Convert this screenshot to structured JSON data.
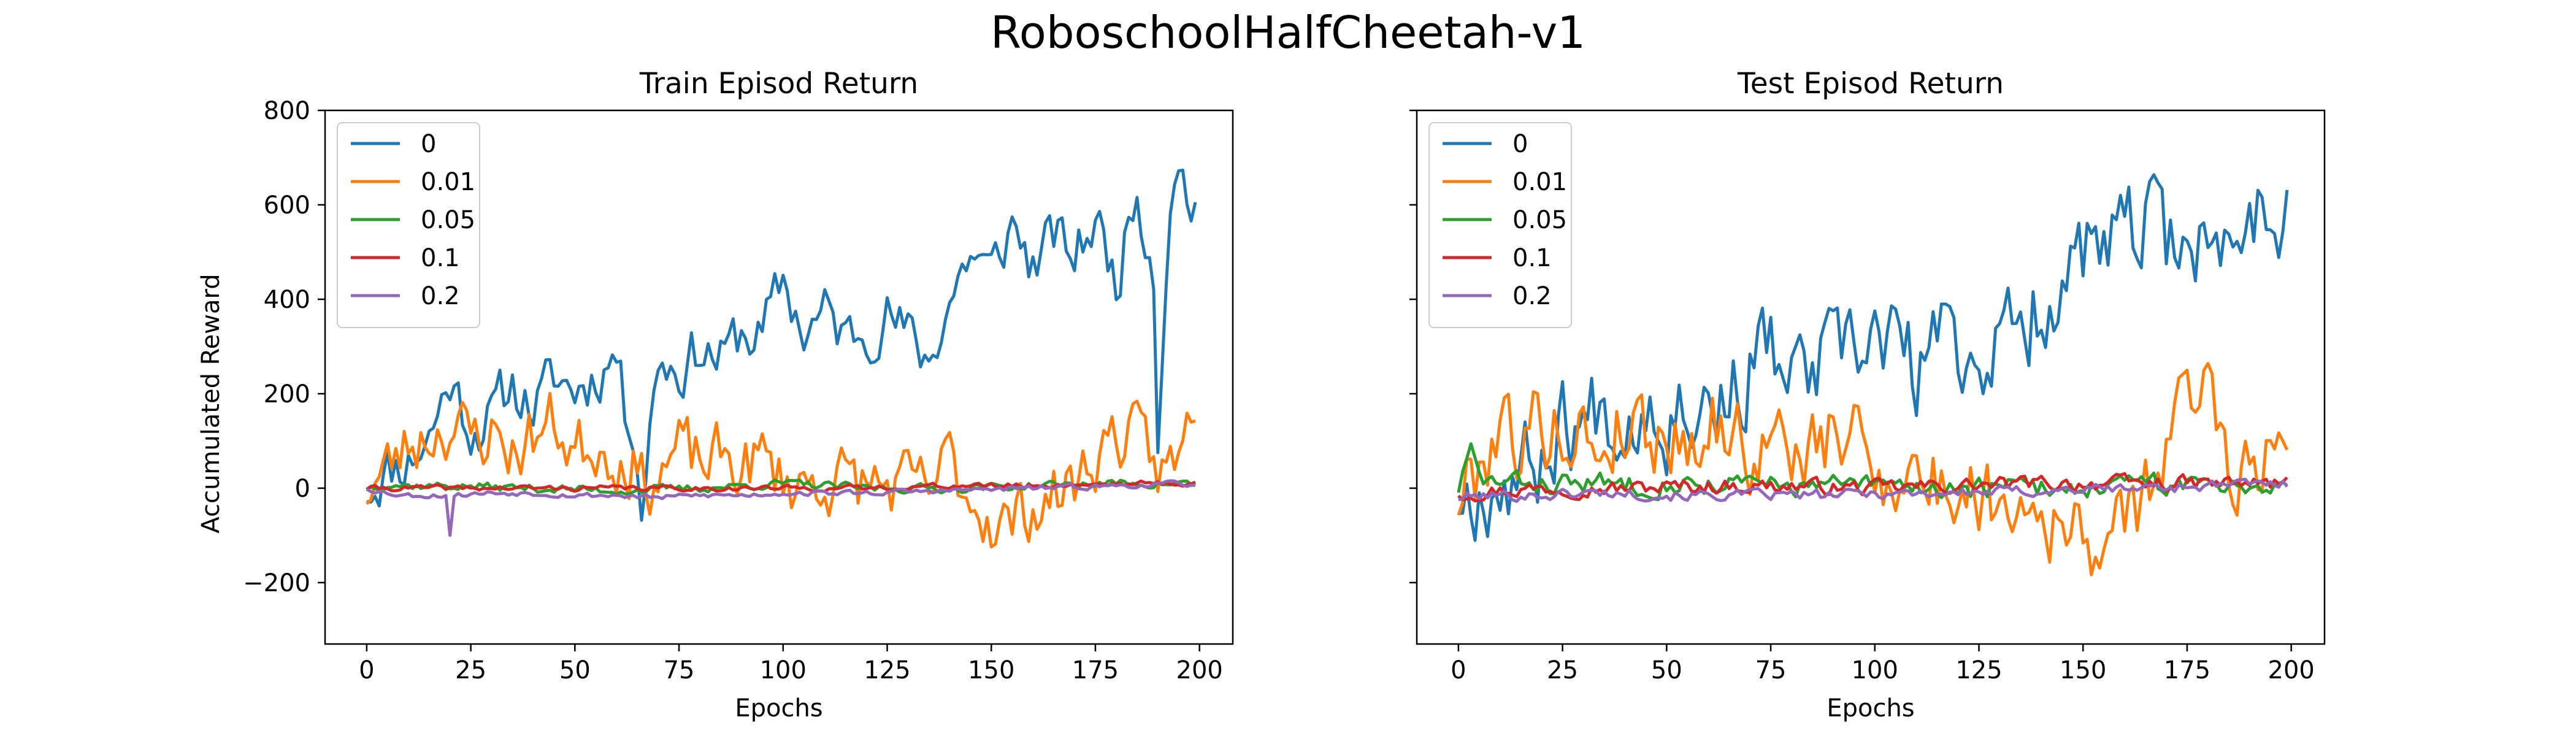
{
  "figure": {
    "suptitle": "RoboschoolHalfCheetah-v1"
  },
  "colors": {
    "0": "#1f77b4",
    "0.01": "#ff7f0e",
    "0.05": "#2ca02c",
    "0.1": "#d62728",
    "0.2": "#9467bd"
  },
  "chart_data": [
    {
      "type": "line",
      "title": "Train Episod Return",
      "xlabel": "Epochs",
      "ylabel": "Accumulated Reward",
      "xlim": [
        -10,
        208
      ],
      "ylim": [
        -330,
        800
      ],
      "xticks": [
        0,
        25,
        50,
        75,
        100,
        125,
        150,
        175,
        200
      ],
      "yticks": [
        -200,
        0,
        200,
        400,
        600,
        800
      ],
      "ytick_labels": [
        "−200",
        "0",
        "200",
        "400",
        "600",
        "800"
      ],
      "legend": "upper-left",
      "series": [
        {
          "name": "0",
          "color": "#1f77b4",
          "seed": 11,
          "points": [
            [
              0,
              0
            ],
            [
              5,
              40
            ],
            [
              10,
              60
            ],
            [
              15,
              110
            ],
            [
              20,
              230
            ],
            [
              25,
              130
            ],
            [
              30,
              150
            ],
            [
              35,
              220
            ],
            [
              40,
              170
            ],
            [
              45,
              230
            ],
            [
              50,
              210
            ],
            [
              55,
              240
            ],
            [
              60,
              290
            ],
            [
              62,
              160
            ],
            [
              64,
              150
            ],
            [
              66,
              -30
            ],
            [
              70,
              280
            ],
            [
              75,
              250
            ],
            [
              80,
              300
            ],
            [
              85,
              270
            ],
            [
              90,
              330
            ],
            [
              95,
              320
            ],
            [
              100,
              440
            ],
            [
              105,
              330
            ],
            [
              110,
              370
            ],
            [
              115,
              320
            ],
            [
              120,
              340
            ],
            [
              125,
              370
            ],
            [
              130,
              320
            ],
            [
              135,
              270
            ],
            [
              140,
              400
            ],
            [
              145,
              500
            ],
            [
              150,
              450
            ],
            [
              155,
              560
            ],
            [
              160,
              470
            ],
            [
              165,
              530
            ],
            [
              170,
              490
            ],
            [
              175,
              570
            ],
            [
              180,
              440
            ],
            [
              185,
              640
            ],
            [
              189,
              470
            ],
            [
              190,
              130
            ],
            [
              193,
              640
            ],
            [
              196,
              670
            ],
            [
              198,
              600
            ]
          ],
          "amp": 55
        },
        {
          "name": "0.01",
          "color": "#ff7f0e",
          "seed": 23,
          "points": [
            [
              0,
              0
            ],
            [
              5,
              40
            ],
            [
              10,
              90
            ],
            [
              15,
              120
            ],
            [
              20,
              140
            ],
            [
              25,
              100
            ],
            [
              30,
              120
            ],
            [
              35,
              80
            ],
            [
              40,
              110
            ],
            [
              45,
              140
            ],
            [
              50,
              80
            ],
            [
              55,
              100
            ],
            [
              60,
              70
            ],
            [
              64,
              60
            ],
            [
              66,
              10
            ],
            [
              70,
              30
            ],
            [
              75,
              80
            ],
            [
              80,
              50
            ],
            [
              85,
              60
            ],
            [
              90,
              50
            ],
            [
              95,
              60
            ],
            [
              100,
              20
            ],
            [
              105,
              10
            ],
            [
              110,
              20
            ],
            [
              120,
              10
            ],
            [
              130,
              0
            ],
            [
              135,
              -10
            ],
            [
              140,
              60
            ],
            [
              145,
              -20
            ],
            [
              150,
              -60
            ],
            [
              155,
              -80
            ],
            [
              160,
              -30
            ],
            [
              165,
              -20
            ],
            [
              170,
              10
            ],
            [
              175,
              70
            ],
            [
              180,
              120
            ],
            [
              185,
              90
            ],
            [
              190,
              40
            ],
            [
              195,
              50
            ],
            [
              199,
              200
            ]
          ],
          "amp": 65
        },
        {
          "name": "0.05",
          "color": "#2ca02c",
          "seed": 37,
          "points": [
            [
              0,
              0
            ],
            [
              5,
              10
            ],
            [
              10,
              5
            ],
            [
              20,
              5
            ],
            [
              40,
              0
            ],
            [
              60,
              -5
            ],
            [
              80,
              0
            ],
            [
              100,
              10
            ],
            [
              120,
              0
            ],
            [
              140,
              0
            ],
            [
              160,
              5
            ],
            [
              180,
              10
            ],
            [
              199,
              10
            ]
          ],
          "amp": 8
        },
        {
          "name": "0.1",
          "color": "#d62728",
          "seed": 41,
          "points": [
            [
              0,
              0
            ],
            [
              20,
              0
            ],
            [
              40,
              0
            ],
            [
              60,
              0
            ],
            [
              80,
              0
            ],
            [
              100,
              0
            ],
            [
              120,
              0
            ],
            [
              140,
              5
            ],
            [
              160,
              5
            ],
            [
              180,
              10
            ],
            [
              199,
              10
            ]
          ],
          "amp": 5
        },
        {
          "name": "0.2",
          "color": "#9467bd",
          "seed": 53,
          "points": [
            [
              0,
              0
            ],
            [
              5,
              -10
            ],
            [
              10,
              -15
            ],
            [
              20,
              -15
            ],
            [
              30,
              -10
            ],
            [
              40,
              -10
            ],
            [
              50,
              -15
            ],
            [
              60,
              -15
            ],
            [
              70,
              -20
            ],
            [
              80,
              -15
            ],
            [
              90,
              -15
            ],
            [
              100,
              -10
            ],
            [
              110,
              -10
            ],
            [
              120,
              -10
            ],
            [
              140,
              -5
            ],
            [
              160,
              0
            ],
            [
              180,
              5
            ],
            [
              199,
              10
            ]
          ],
          "amp": 5,
          "spikes": [
            [
              20,
              -100
            ]
          ]
        }
      ]
    },
    {
      "type": "line",
      "title": "Test Episod Return",
      "xlabel": "Epochs",
      "ylabel": "",
      "xlim": [
        -10,
        208
      ],
      "ylim": [
        -330,
        800
      ],
      "xticks": [
        0,
        25,
        50,
        75,
        100,
        125,
        150,
        175,
        200
      ],
      "yticks": [
        -200,
        0,
        200,
        400,
        600,
        800
      ],
      "ytick_labels": [
        "",
        "",
        "",
        "",
        "",
        ""
      ],
      "legend": "upper-left",
      "series": [
        {
          "name": "0",
          "color": "#1f77b4",
          "seed": 67,
          "points": [
            [
              0,
              -10
            ],
            [
              5,
              0
            ],
            [
              10,
              20
            ],
            [
              20,
              60
            ],
            [
              25,
              150
            ],
            [
              30,
              130
            ],
            [
              35,
              200
            ],
            [
              40,
              130
            ],
            [
              45,
              210
            ],
            [
              50,
              150
            ],
            [
              55,
              200
            ],
            [
              60,
              190
            ],
            [
              65,
              190
            ],
            [
              70,
              250
            ],
            [
              75,
              300
            ],
            [
              80,
              210
            ],
            [
              85,
              250
            ],
            [
              90,
              280
            ],
            [
              95,
              260
            ],
            [
              100,
              330
            ],
            [
              105,
              310
            ],
            [
              110,
              230
            ],
            [
              115,
              330
            ],
            [
              120,
              290
            ],
            [
              125,
              280
            ],
            [
              130,
              310
            ],
            [
              135,
              330
            ],
            [
              140,
              400
            ],
            [
              145,
              440
            ],
            [
              150,
              500
            ],
            [
              155,
              480
            ],
            [
              160,
              530
            ],
            [
              165,
              560
            ],
            [
              170,
              510
            ],
            [
              175,
              560
            ],
            [
              180,
              490
            ],
            [
              185,
              520
            ],
            [
              190,
              600
            ],
            [
              195,
              590
            ],
            [
              199,
              610
            ]
          ],
          "amp": 90
        },
        {
          "name": "0.01",
          "color": "#ff7f0e",
          "seed": 79,
          "points": [
            [
              0,
              -20
            ],
            [
              5,
              50
            ],
            [
              10,
              150
            ],
            [
              15,
              100
            ],
            [
              20,
              140
            ],
            [
              25,
              120
            ],
            [
              30,
              110
            ],
            [
              35,
              90
            ],
            [
              40,
              150
            ],
            [
              45,
              120
            ],
            [
              50,
              110
            ],
            [
              55,
              110
            ],
            [
              60,
              140
            ],
            [
              65,
              130
            ],
            [
              70,
              80
            ],
            [
              75,
              90
            ],
            [
              80,
              90
            ],
            [
              85,
              70
            ],
            [
              90,
              100
            ],
            [
              95,
              120
            ],
            [
              100,
              40
            ],
            [
              105,
              40
            ],
            [
              110,
              30
            ],
            [
              115,
              0
            ],
            [
              120,
              0
            ],
            [
              125,
              -10
            ],
            [
              130,
              -20
            ],
            [
              135,
              -10
            ],
            [
              140,
              -40
            ],
            [
              145,
              -80
            ],
            [
              150,
              -120
            ],
            [
              155,
              -100
            ],
            [
              160,
              -100
            ],
            [
              165,
              0
            ],
            [
              170,
              80
            ],
            [
              175,
              180
            ],
            [
              180,
              250
            ],
            [
              185,
              70
            ],
            [
              190,
              20
            ],
            [
              195,
              100
            ],
            [
              199,
              140
            ]
          ],
          "amp": 80
        },
        {
          "name": "0.05",
          "color": "#2ca02c",
          "seed": 83,
          "points": [
            [
              0,
              0
            ],
            [
              3,
              80
            ],
            [
              5,
              20
            ],
            [
              10,
              10
            ],
            [
              20,
              10
            ],
            [
              30,
              10
            ],
            [
              40,
              10
            ],
            [
              50,
              10
            ],
            [
              60,
              10
            ],
            [
              80,
              5
            ],
            [
              100,
              5
            ],
            [
              120,
              0
            ],
            [
              140,
              0
            ],
            [
              160,
              5
            ],
            [
              180,
              10
            ],
            [
              199,
              10
            ]
          ],
          "amp": 20
        },
        {
          "name": "0.1",
          "color": "#d62728",
          "seed": 97,
          "points": [
            [
              0,
              -10
            ],
            [
              20,
              0
            ],
            [
              40,
              0
            ],
            [
              60,
              5
            ],
            [
              80,
              5
            ],
            [
              100,
              0
            ],
            [
              120,
              5
            ],
            [
              140,
              10
            ],
            [
              160,
              10
            ],
            [
              180,
              10
            ],
            [
              199,
              10
            ]
          ],
          "amp": 14
        },
        {
          "name": "0.2",
          "color": "#9467bd",
          "seed": 101,
          "points": [
            [
              0,
              -20
            ],
            [
              10,
              -15
            ],
            [
              20,
              -15
            ],
            [
              30,
              -10
            ],
            [
              40,
              -10
            ],
            [
              50,
              -15
            ],
            [
              60,
              -15
            ],
            [
              70,
              -15
            ],
            [
              80,
              -15
            ],
            [
              90,
              -15
            ],
            [
              100,
              -10
            ],
            [
              110,
              -10
            ],
            [
              120,
              -10
            ],
            [
              140,
              -5
            ],
            [
              160,
              0
            ],
            [
              180,
              5
            ],
            [
              199,
              10
            ]
          ],
          "amp": 10
        }
      ]
    }
  ]
}
